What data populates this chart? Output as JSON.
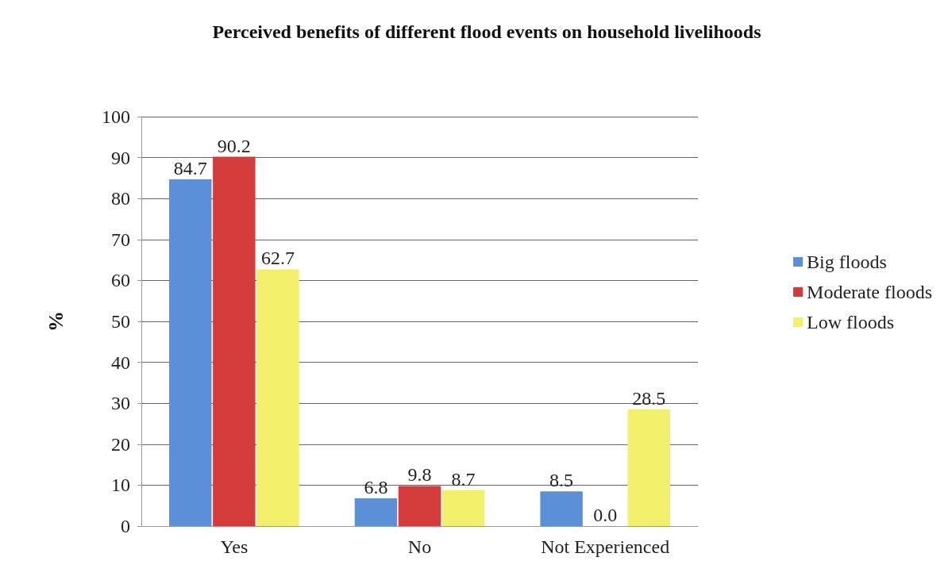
{
  "chart_data": {
    "type": "bar",
    "title": "Perceived benefits of different flood events on household livelihoods",
    "ylabel": "%",
    "categories": [
      "Yes",
      "No",
      "Not Experienced"
    ],
    "series": [
      {
        "name": "Big floods",
        "color": "#5b8fd8",
        "values": [
          84.7,
          6.8,
          8.5
        ],
        "value_labels": [
          "84.7",
          "6.8",
          "8.5"
        ]
      },
      {
        "name": "Moderate floods",
        "color": "#d43c3c",
        "values": [
          90.2,
          9.8,
          0.0
        ],
        "value_labels": [
          "90.2",
          "9.8",
          "0.0"
        ]
      },
      {
        "name": "Low floods",
        "color": "#f2ef6a",
        "values": [
          62.7,
          8.7,
          28.5
        ],
        "value_labels": [
          "62.7",
          "8.7",
          "28.5"
        ]
      }
    ],
    "ylim": [
      0,
      100
    ],
    "yticks": [
      0,
      10,
      20,
      30,
      40,
      50,
      60,
      70,
      80,
      90,
      100
    ],
    "grid": "y",
    "legend": "right"
  }
}
